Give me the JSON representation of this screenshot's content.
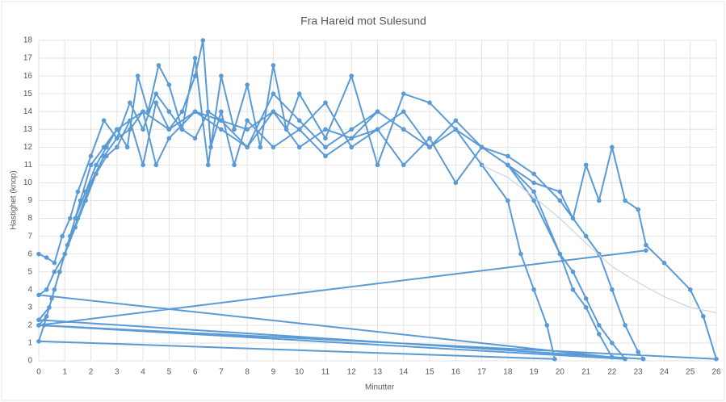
{
  "chart_data": {
    "type": "line",
    "title": "Fra Hareid mot Sulesund",
    "x_label": "Minutter",
    "y_label": "Hastighet (knop)",
    "xlim": [
      0,
      26
    ],
    "xticks": [
      0,
      1,
      2,
      3,
      4,
      5,
      6,
      7,
      8,
      9,
      10,
      11,
      12,
      13,
      14,
      15,
      16,
      17,
      18,
      19,
      20,
      21,
      22,
      23,
      24,
      25,
      26
    ],
    "ylim": [
      0,
      18
    ],
    "yticks": [
      0,
      1,
      2,
      3,
      4,
      5,
      6,
      7,
      8,
      9,
      10,
      11,
      12,
      13,
      14,
      15,
      16,
      17,
      18
    ],
    "grid": true,
    "series": [
      {
        "color": "#5b9bd5",
        "markers": true,
        "x": [
          0,
          0.3,
          0.6,
          0.9,
          1.2,
          1.5,
          2,
          2.5,
          3,
          3.5,
          4,
          4.5,
          5,
          5.5,
          6,
          6.5,
          7,
          8,
          9,
          10,
          11,
          12,
          13,
          14,
          15,
          16,
          17,
          18,
          18.5,
          19,
          19.5,
          19.8,
          0,
          0.2,
          0.5,
          0.8,
          1.1,
          1.4,
          1.8,
          2.2,
          2.6,
          3,
          3.4,
          3.8,
          4.2,
          4.6,
          5,
          5.5,
          6,
          6.5,
          7,
          7.5,
          8,
          8.5,
          9,
          9.5,
          10,
          11,
          12,
          13,
          14,
          15,
          16,
          17,
          18,
          19,
          20,
          20.5,
          21,
          21.5,
          22,
          0,
          0.3,
          0.6,
          1,
          1.4,
          1.8,
          2.2,
          2.6,
          3,
          3.5,
          4,
          4.5,
          5,
          5.5,
          6,
          6.3,
          6.6,
          7,
          7.5,
          8,
          9,
          10,
          11,
          12,
          13,
          14,
          15,
          16,
          17,
          18,
          19,
          20,
          20.5,
          21,
          21.5,
          22,
          22.5,
          0,
          0.3,
          0.6,
          1,
          1.5,
          2,
          2.5,
          3,
          3.5,
          4,
          4.5,
          5,
          6,
          7,
          8,
          9,
          10,
          11,
          12,
          13,
          14,
          15,
          16,
          17,
          18,
          19,
          20,
          21,
          21.5,
          22,
          22.5,
          23,
          23.2,
          0,
          0.4,
          0.8,
          1.2,
          1.6,
          2,
          2.5,
          3,
          4,
          5,
          6,
          7,
          8,
          9,
          10,
          11,
          12,
          13,
          14,
          15,
          16,
          17,
          18,
          19,
          20,
          20.5,
          21,
          21.5,
          22,
          22.5,
          23,
          23.3,
          24,
          25,
          25.5,
          26,
          0,
          23.3
        ],
        "values": [
          6,
          5.8,
          5.5,
          7,
          8,
          9.5,
          11.5,
          13.5,
          12.5,
          14.5,
          13,
          15,
          14,
          13,
          12.5,
          14,
          13.5,
          12,
          14,
          13,
          11.5,
          12.5,
          14,
          13,
          12,
          13,
          11,
          9,
          6,
          4,
          2,
          0.1,
          1.1,
          2,
          3.5,
          5,
          6.5,
          8,
          9.5,
          11,
          12,
          13,
          12,
          16,
          14,
          16.6,
          15.5,
          13,
          17,
          11,
          16,
          13,
          15.5,
          12,
          16.6,
          13,
          15,
          12.5,
          16,
          11,
          15,
          14.5,
          13,
          12,
          11,
          9.5,
          6,
          4,
          3,
          1.5,
          0.2,
          3.7,
          4,
          5,
          6,
          7.5,
          9,
          10.5,
          11.5,
          12,
          13.5,
          11,
          14.5,
          13,
          14,
          16,
          18,
          12,
          14,
          11,
          13.5,
          12,
          13,
          14.5,
          12,
          13,
          11,
          12.5,
          10,
          12,
          11,
          9,
          6,
          5,
          3.5,
          2,
          1,
          0.1,
          2,
          2.5,
          4,
          6,
          8,
          10,
          11.5,
          12.5,
          13,
          14,
          11,
          12.5,
          14,
          13,
          12,
          15,
          13.5,
          12,
          13,
          14,
          13,
          12,
          13.5,
          12,
          11.5,
          10.5,
          9,
          7,
          6,
          4,
          2,
          0.5,
          0.1,
          2.3,
          3,
          5,
          7,
          9,
          11,
          12,
          13,
          14,
          13,
          14,
          13.5,
          13,
          14,
          12,
          13,
          12.5,
          13,
          14,
          12,
          13,
          12,
          11,
          10,
          9.5,
          8,
          11,
          9,
          12,
          9,
          8.5,
          6.5,
          5.5,
          4,
          2.5,
          0.1,
          2,
          6.2
        ]
      },
      {
        "color": "#c9d6e3",
        "markers": false,
        "x": [
          17,
          18,
          19,
          20,
          21,
          22,
          23,
          24,
          25,
          26
        ],
        "values": [
          11,
          10.3,
          9.2,
          8,
          6.6,
          5.3,
          4.4,
          3.6,
          3,
          2.7
        ]
      }
    ]
  }
}
